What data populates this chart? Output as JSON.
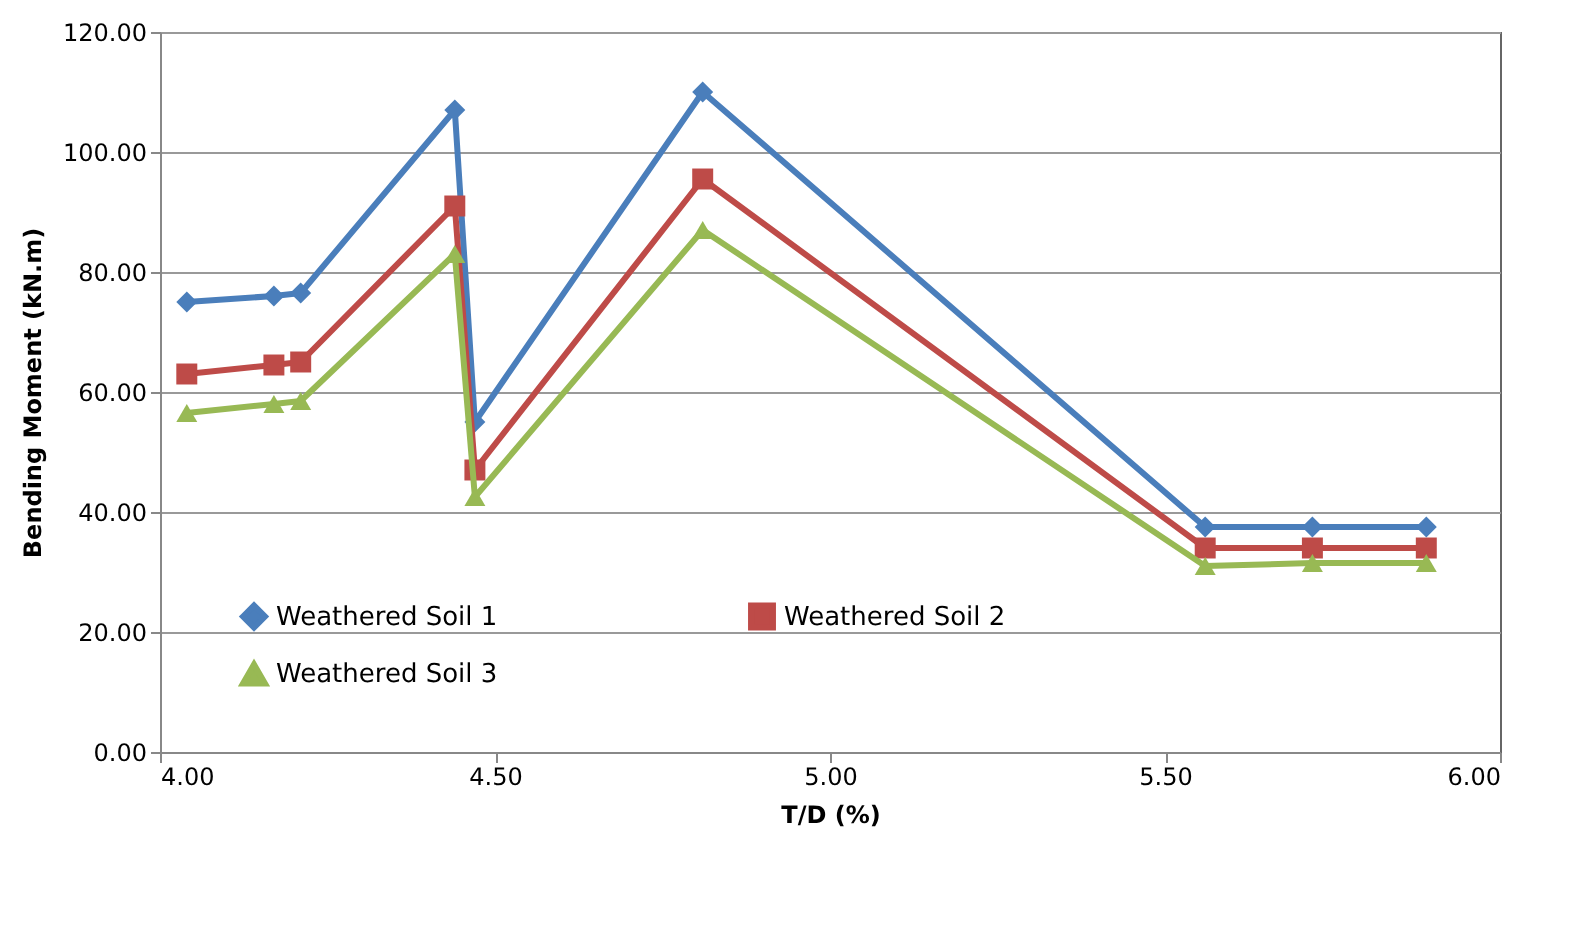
{
  "chart_data": {
    "type": "line",
    "xlabel": "T/D (%)",
    "ylabel": "Bending Moment  (kN.m)",
    "x": [
      4.04,
      4.17,
      4.21,
      4.44,
      4.47,
      4.81,
      5.56,
      5.72,
      5.89
    ],
    "series": [
      {
        "name": "Weathered Soil 1",
        "color": "#4a7ebb",
        "marker": "diamond",
        "values": [
          75,
          76,
          76.5,
          107,
          55,
          110,
          37.5,
          37.5,
          37.5
        ]
      },
      {
        "name": "Weathered Soil 2",
        "color": "#be4b48",
        "marker": "square",
        "values": [
          63,
          64.5,
          65,
          91,
          47,
          95.5,
          34,
          34,
          34
        ]
      },
      {
        "name": "Weathered Soil 3",
        "color": "#98b954",
        "marker": "triangle",
        "values": [
          56.5,
          58,
          58.5,
          83,
          42.5,
          87,
          31,
          31.5,
          31.5
        ]
      }
    ],
    "xlim": [
      4,
      6
    ],
    "xticks": [
      {
        "value": 4,
        "label": "4.00"
      },
      {
        "value": 4.5,
        "label": "4.50"
      },
      {
        "value": 5,
        "label": "5.00"
      },
      {
        "value": 5.5,
        "label": "5.50"
      },
      {
        "value": 6,
        "label": "6.00"
      }
    ],
    "ylim": [
      0,
      120
    ],
    "yticks": [
      {
        "value": 0,
        "label": "0.00"
      },
      {
        "value": 20,
        "label": "20.00"
      },
      {
        "value": 40,
        "label": "40.00"
      },
      {
        "value": 60,
        "label": "60.00"
      },
      {
        "value": 80,
        "label": "80.00"
      },
      {
        "value": 100,
        "label": "100.00"
      },
      {
        "value": 120,
        "label": "120.00"
      }
    ],
    "grid": "y",
    "legend": "bottom"
  }
}
